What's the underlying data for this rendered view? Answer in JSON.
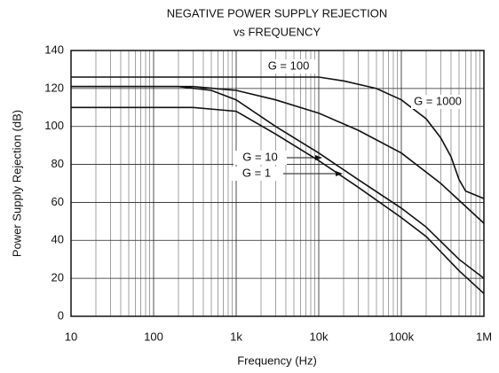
{
  "chart_data": {
    "type": "line",
    "title": "NEGATIVE POWER SUPPLY REJECTION",
    "subtitle": "vs FREQUENCY",
    "x_label": "Frequency (Hz)",
    "y_label": "Power Supply Rejection (dB)",
    "log_x": true,
    "grid": true,
    "minor_grid": true,
    "xlim": [
      10,
      1000000
    ],
    "xticks": [
      10,
      100,
      {
        "value": 1000,
        "label": "1k"
      },
      {
        "value": 10000,
        "label": "10k"
      },
      {
        "value": 100000,
        "label": "100k"
      },
      {
        "value": 1000000,
        "label": "1M"
      }
    ],
    "ylim": [
      0,
      140
    ],
    "yticks": [
      0,
      20,
      40,
      60,
      80,
      100,
      120,
      140
    ],
    "series": [
      {
        "name": "G = 1000",
        "color": "#111111",
        "x": [
          10,
          1000,
          10000,
          20000,
          50000,
          100000,
          200000,
          300000,
          400000,
          500000,
          600000,
          1000000
        ],
        "values": [
          126,
          126,
          126,
          124,
          120,
          114,
          104,
          94,
          84,
          72,
          66,
          62
        ]
      },
      {
        "name": "G = 100",
        "color": "#111111",
        "x": [
          10,
          300,
          1000,
          3000,
          10000,
          30000,
          100000,
          300000,
          1000000
        ],
        "values": [
          121,
          121,
          119,
          114,
          107,
          98,
          86,
          70,
          49
        ]
      },
      {
        "name": "G = 10",
        "color": "#111111",
        "x": [
          10,
          200,
          500,
          1000,
          3000,
          10000,
          30000,
          100000,
          200000,
          500000,
          1000000
        ],
        "values": [
          121,
          121,
          119,
          114,
          100,
          86,
          72,
          57,
          47,
          30,
          20
        ]
      },
      {
        "name": "G = 1",
        "color": "#111111",
        "x": [
          10,
          300,
          1000,
          3000,
          10000,
          30000,
          100000,
          200000,
          500000,
          1000000
        ],
        "values": [
          110,
          110,
          108,
          96,
          82,
          68,
          52,
          42,
          24,
          12
        ]
      }
    ]
  }
}
